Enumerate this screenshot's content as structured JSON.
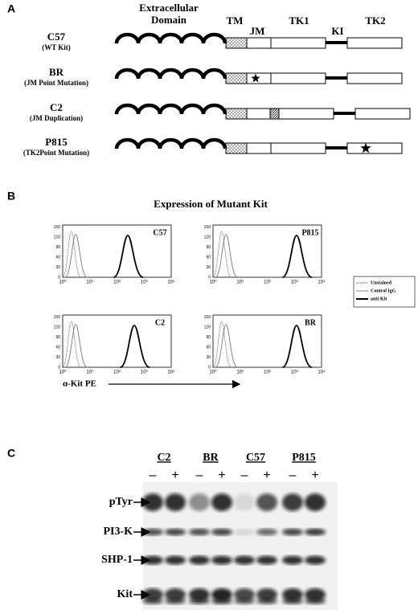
{
  "panel_a": {
    "label": "A",
    "headers": [
      "Extracellular Domain",
      "TM",
      "JM",
      "TK1",
      "KI",
      "TK2"
    ],
    "rows": [
      {
        "name": "C57",
        "sub": "(WT Kit)"
      },
      {
        "name": "BR",
        "sub": "(JM Point Mutation)"
      },
      {
        "name": "C2",
        "sub": "(JM Duplication)"
      },
      {
        "name": "P815",
        "sub": "(TK2Point Mutation)"
      }
    ]
  },
  "panel_b": {
    "label": "B",
    "title": "Expression of Mutant Kit",
    "plots": [
      "C57",
      "P815",
      "C2",
      "BR"
    ],
    "yticks": [
      "0",
      "30",
      "60",
      "90",
      "120",
      "150"
    ],
    "xticks": [
      "10⁰",
      "10¹",
      "10²",
      "10³",
      "10⁴"
    ],
    "legend": [
      "Unstained",
      "Control IgG",
      "anti-Kit"
    ],
    "xlabel": "α-Kit PE"
  },
  "panel_c": {
    "label": "C",
    "lanes": [
      "C2",
      "BR",
      "C57",
      "P815"
    ],
    "signs": [
      "–",
      "+"
    ],
    "rows": [
      "pTyr",
      "PI3-K",
      "SHP-1",
      "Kit"
    ]
  }
}
